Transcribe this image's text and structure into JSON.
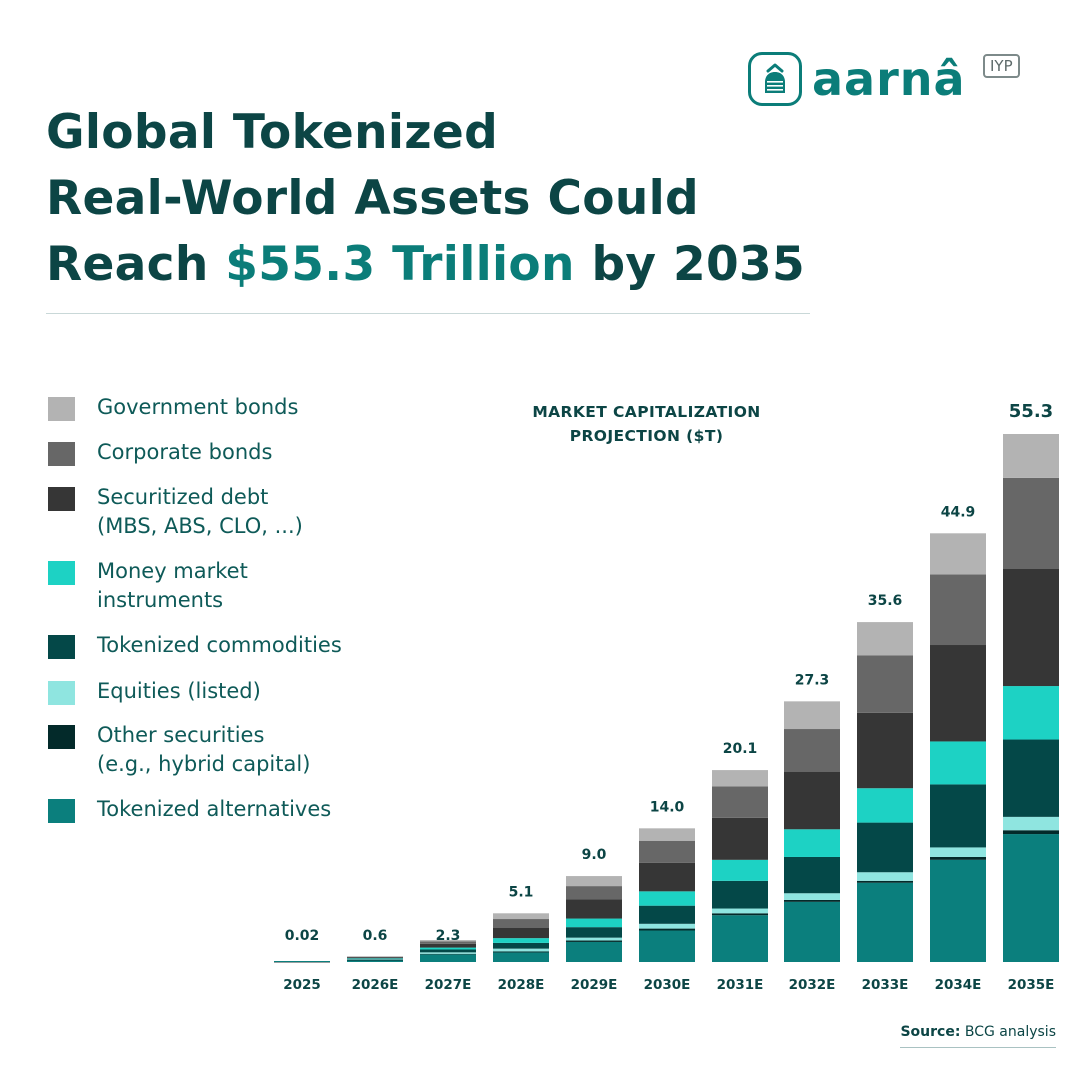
{
  "brand": {
    "name": "aarnâ",
    "tag": "IYP"
  },
  "title": {
    "line1": "Global Tokenized",
    "line2": "Real-World Assets Could",
    "line3_prefix": "Reach ",
    "line3_accent": "$55.3 Trillion",
    "line3_suffix": " by 2035"
  },
  "colors": {
    "Government bonds": "#b3b3b3",
    "Corporate bonds": "#676767",
    "Securitized debt": "#363636",
    "Money market instruments": "#1dd2c4",
    "Tokenized commodities": "#044848",
    "Equities (listed)": "#8fe5e0",
    "Other securities": "#032a2a",
    "Tokenized alternatives": "#0b7f7d",
    "text": "#0c4545",
    "accent": "#0b7d79"
  },
  "legend": [
    {
      "lines": [
        "Government bonds"
      ],
      "color": "#b3b3b3"
    },
    {
      "lines": [
        "Corporate bonds"
      ],
      "color": "#676767"
    },
    {
      "lines": [
        "Securitized debt",
        "(MBS, ABS, CLO, ...)"
      ],
      "color": "#363636"
    },
    {
      "lines": [
        "Money market",
        "instruments"
      ],
      "color": "#1dd2c4"
    },
    {
      "lines": [
        "Tokenized commodities"
      ],
      "color": "#044848"
    },
    {
      "lines": [
        "Equities (listed)"
      ],
      "color": "#8fe5e0"
    },
    {
      "lines": [
        "Other securities",
        "(e.g., hybrid capital)"
      ],
      "color": "#032a2a"
    },
    {
      "lines": [
        "Tokenized alternatives"
      ],
      "color": "#0b7f7d"
    }
  ],
  "chart_data": {
    "type": "bar",
    "stacked": true,
    "title_lines": [
      "MARKET CAPITALIZATION",
      "PROJECTION ($T)"
    ],
    "xlabel": "",
    "ylabel": "",
    "ylim": [
      0,
      55.3
    ],
    "grid": false,
    "legend_position": "left",
    "categories": [
      "2025",
      "2026E",
      "2027E",
      "2028E",
      "2029E",
      "2030E",
      "2031E",
      "2032E",
      "2033E",
      "2034E",
      "2035E"
    ],
    "totals": [
      0.02,
      0.6,
      2.3,
      5.1,
      9.0,
      14.0,
      20.1,
      27.3,
      35.6,
      44.9,
      55.3
    ],
    "total_labels": [
      "0.02",
      "0.6",
      "2.3",
      "5.1",
      "9.0",
      "14.0",
      "20.1",
      "27.3",
      "35.6",
      "44.9",
      "55.3"
    ],
    "series": [
      {
        "name": "Tokenized alternatives",
        "values": [
          0.01,
          0.2,
          0.8,
          1.0,
          2.1,
          3.3,
          4.9,
          6.3,
          8.3,
          10.7,
          13.4
        ]
      },
      {
        "name": "Other securities",
        "values": [
          0.0,
          0.02,
          0.06,
          0.1,
          0.15,
          0.2,
          0.2,
          0.2,
          0.2,
          0.3,
          0.4
        ]
      },
      {
        "name": "Equities (listed)",
        "values": [
          0.0,
          0.05,
          0.15,
          0.3,
          0.3,
          0.5,
          0.5,
          0.7,
          0.9,
          1.0,
          1.4
        ]
      },
      {
        "name": "Tokenized commodities",
        "values": [
          0.0,
          0.08,
          0.3,
          0.6,
          1.1,
          1.9,
          2.9,
          3.8,
          5.2,
          6.6,
          8.1
        ]
      },
      {
        "name": "Money market instruments",
        "values": [
          0.0,
          0.05,
          0.2,
          0.5,
          0.9,
          1.5,
          2.2,
          2.9,
          3.6,
          4.5,
          5.6
        ]
      },
      {
        "name": "Securitized debt",
        "values": [
          0.01,
          0.1,
          0.4,
          1.1,
          2.0,
          3.0,
          4.4,
          6.0,
          7.9,
          10.1,
          12.3
        ]
      },
      {
        "name": "Corporate bonds",
        "values": [
          0.0,
          0.05,
          0.24,
          0.9,
          1.4,
          2.3,
          3.3,
          4.5,
          6.0,
          7.4,
          9.5
        ]
      },
      {
        "name": "Government bonds",
        "values": [
          0.0,
          0.05,
          0.15,
          0.6,
          1.05,
          1.3,
          1.7,
          2.9,
          3.5,
          4.3,
          4.6
        ]
      }
    ]
  },
  "source": {
    "label": "Source:",
    "text": " BCG analysis"
  }
}
